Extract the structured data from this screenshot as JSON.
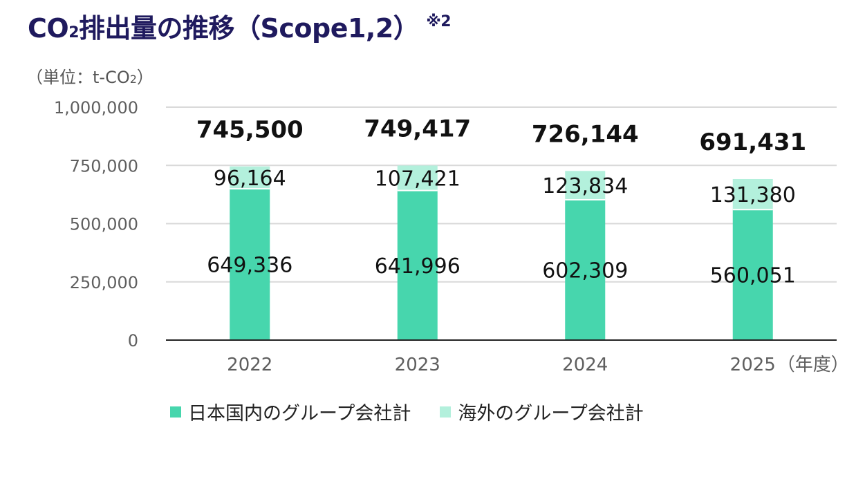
{
  "title": {
    "main": "CO",
    "subscript": "2",
    "rest": "排出量の推移（Scope1,2）",
    "note": "※2"
  },
  "unit": {
    "prefix": "（単位：t-CO",
    "subscript": "2",
    "suffix": "）"
  },
  "colors": {
    "domestic": "#47d6ad",
    "overseas": "#b3f0dc",
    "grid": "#d9d9d9",
    "axis": "#222222"
  },
  "chart_data": {
    "type": "bar",
    "stacked": true,
    "categories": [
      "2022",
      "2023",
      "2024",
      "2025"
    ],
    "x_unit_suffix": "（年度）",
    "series": [
      {
        "name": "日本国内のグループ会社計",
        "values": [
          649336,
          641996,
          602309,
          560051
        ],
        "labels": [
          "649,336",
          "641,996",
          "602,309",
          "560,051"
        ]
      },
      {
        "name": "海外のグループ会社計",
        "values": [
          96164,
          107421,
          123834,
          131380
        ],
        "labels": [
          "96,164",
          "107,421",
          "123,834",
          "131,380"
        ]
      }
    ],
    "totals": [
      745500,
      749417,
      726144,
      691431
    ],
    "total_labels": [
      "745,500",
      "749,417",
      "726,144",
      "691,431"
    ],
    "ylim": [
      0,
      1000000
    ],
    "yticks": [
      0,
      250000,
      500000,
      750000,
      1000000
    ],
    "ytick_labels": [
      "0",
      "250,000",
      "500,000",
      "750,000",
      "1,000,000"
    ],
    "grid": true,
    "legend_position": "bottom"
  }
}
